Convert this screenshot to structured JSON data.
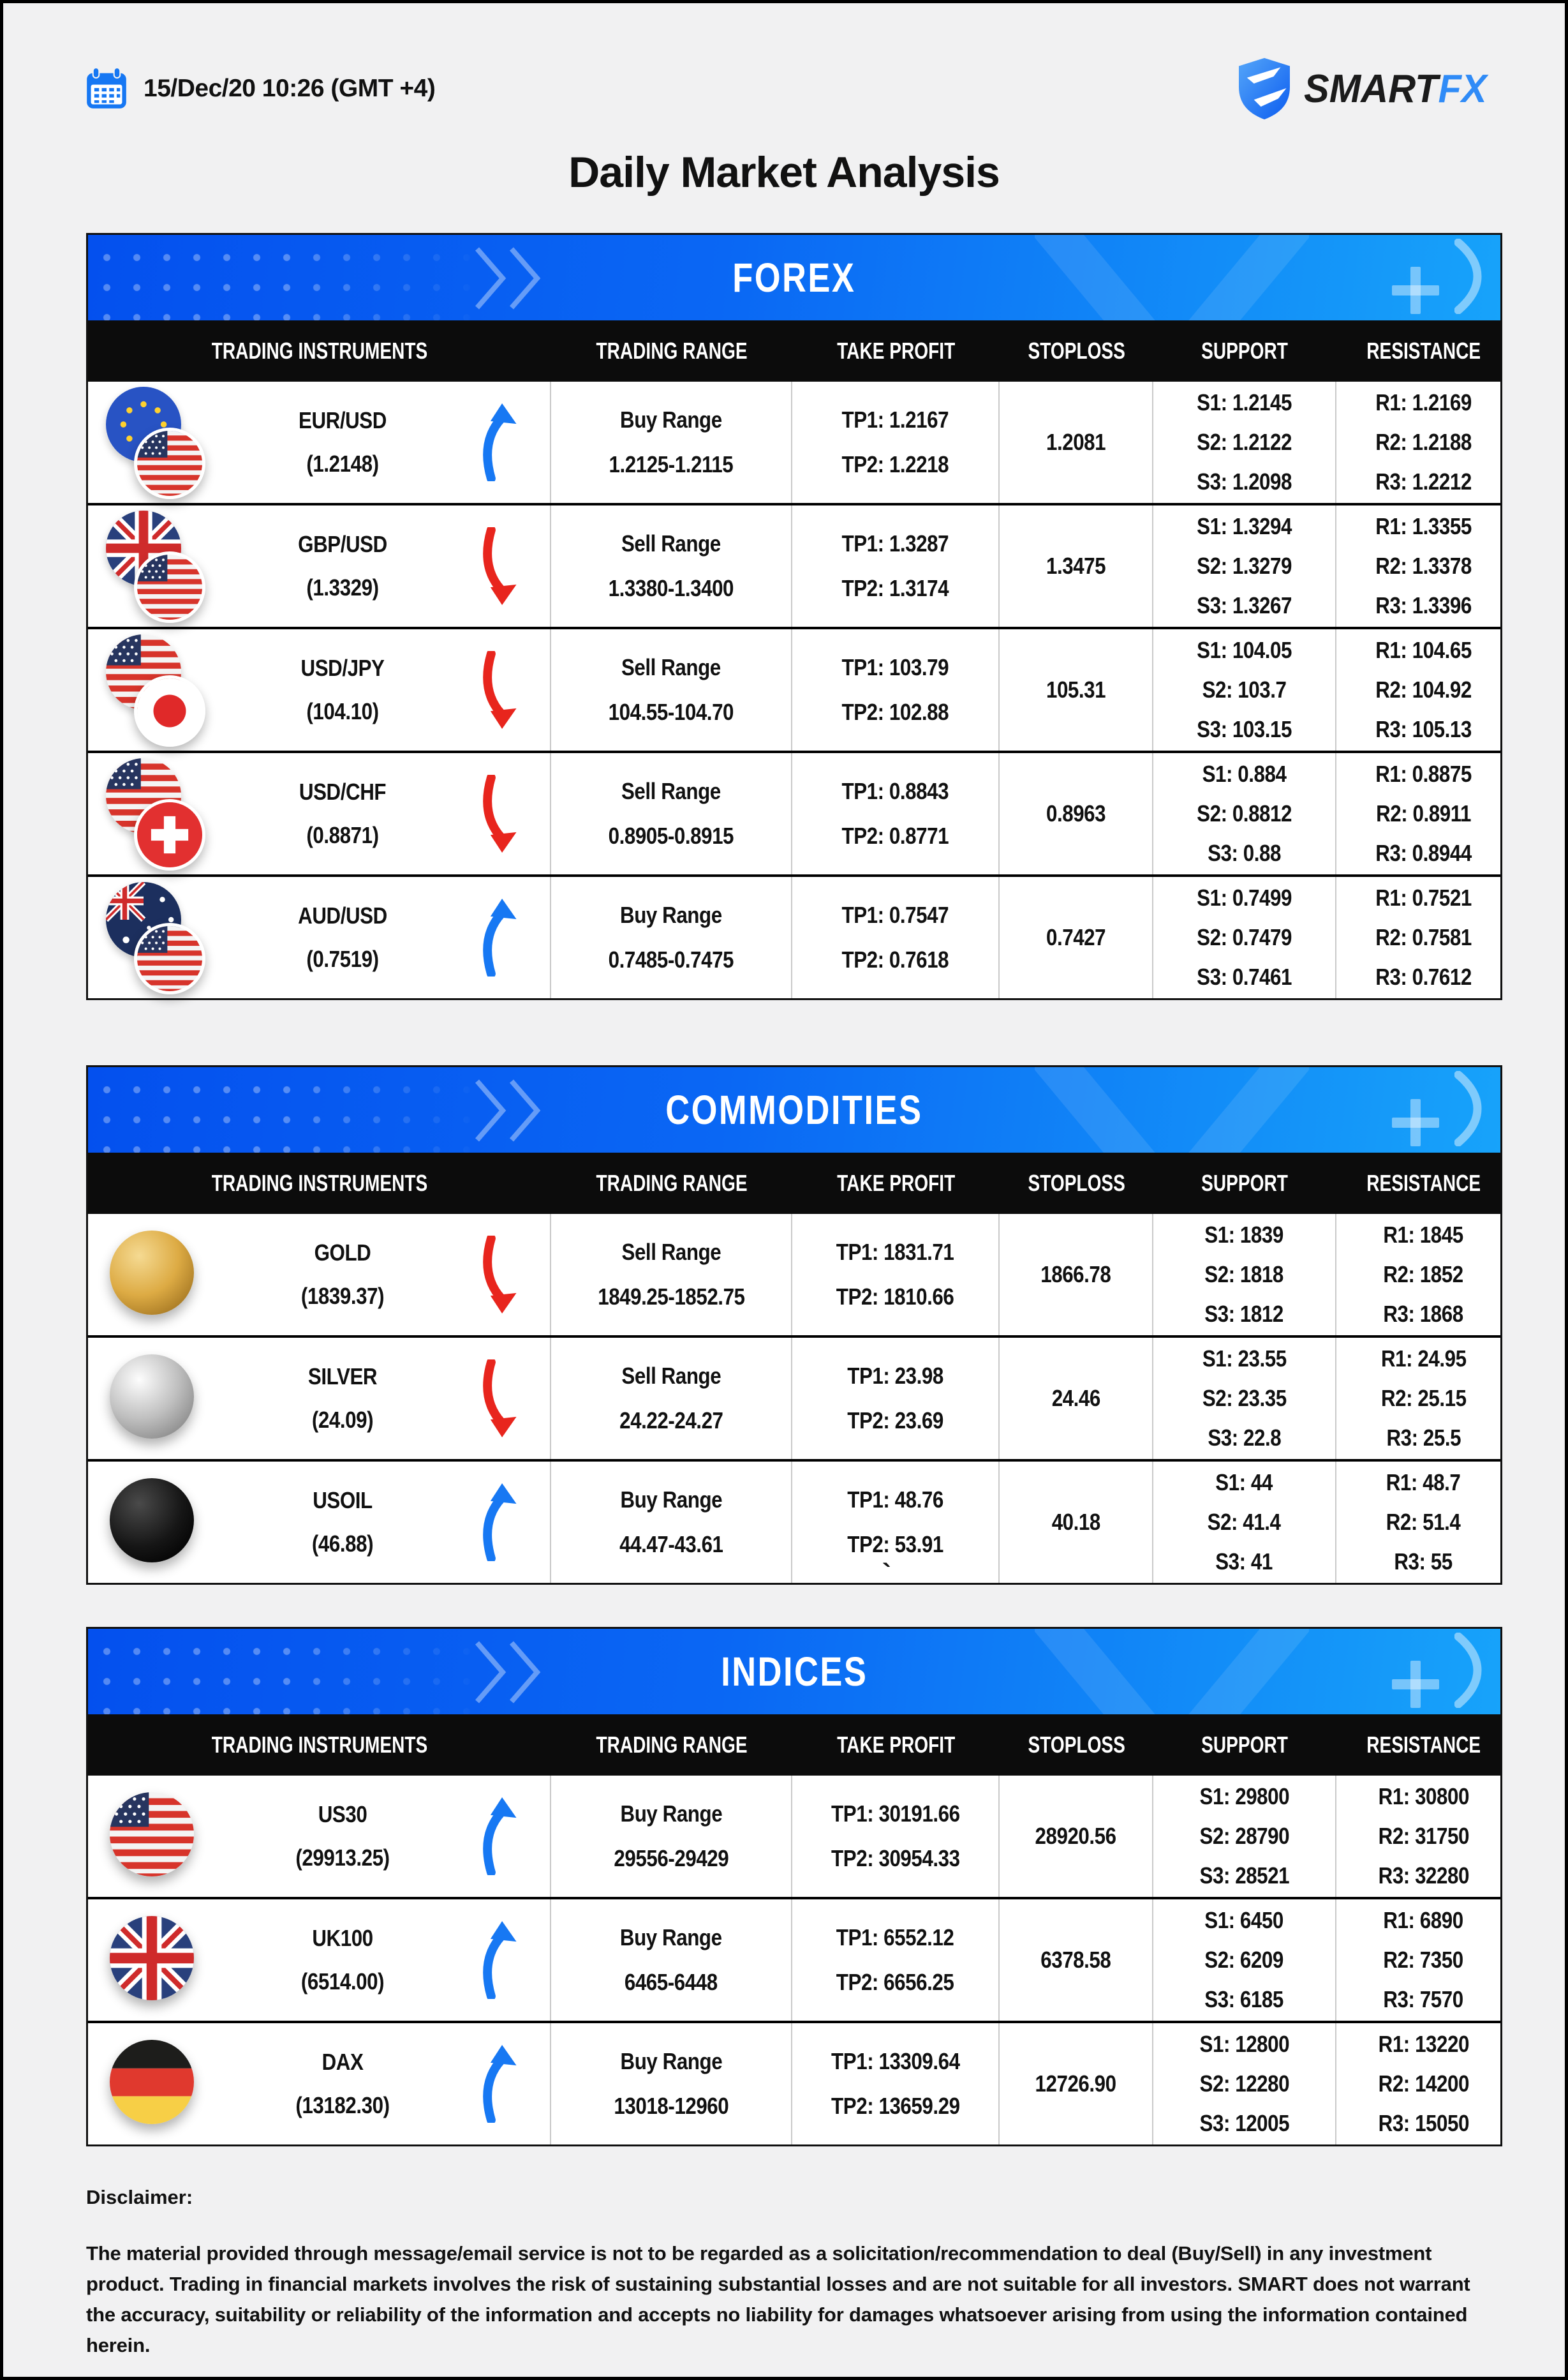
{
  "page": {
    "date": "15/Dec/20 10:26 (GMT +4)",
    "title": "Daily Market Analysis",
    "stray_char": "`"
  },
  "brand": {
    "smart": "SMART",
    "fx": "FX"
  },
  "colors": {
    "banner_gradient_start": "#0450ee",
    "banner_gradient_end": "#17a3fa",
    "header_bar": "#0c0c0c",
    "up_arrow": "#1778f3",
    "down_arrow": "#e8251d",
    "calendar_blue": "#1677f3",
    "logo_blue": "#2f8bf7"
  },
  "columns": [
    "TRADING INSTRUMENTS",
    "TRADING RANGE",
    "TAKE PROFIT",
    "STOPLOSS",
    "SUPPORT",
    "RESISTANCE"
  ],
  "sections": [
    {
      "title": "FOREX",
      "rows": [
        {
          "symbol": "EUR/USD",
          "price": "(1.2148)",
          "direction": "up",
          "icon": "eur-usd",
          "range_label": "Buy Range",
          "range": "1.2125-1.2115",
          "tp1": "TP1: 1.2167",
          "tp2": "TP2: 1.2218",
          "stoploss": "1.2081",
          "s1": "S1: 1.2145",
          "s2": "S2: 1.2122",
          "s3": "S3: 1.2098",
          "r1": "R1: 1.2169",
          "r2": "R2: 1.2188",
          "r3": "R3: 1.2212"
        },
        {
          "symbol": "GBP/USD",
          "price": "(1.3329)",
          "direction": "down",
          "icon": "gbp-usd",
          "range_label": "Sell Range",
          "range": "1.3380-1.3400",
          "tp1": "TP1: 1.3287",
          "tp2": "TP2: 1.3174",
          "stoploss": "1.3475",
          "s1": "S1: 1.3294",
          "s2": "S2: 1.3279",
          "s3": "S3: 1.3267",
          "r1": "R1: 1.3355",
          "r2": "R2: 1.3378",
          "r3": "R3: 1.3396"
        },
        {
          "symbol": "USD/JPY",
          "price": "(104.10)",
          "direction": "down",
          "icon": "usd-jpy",
          "range_label": "Sell Range",
          "range": "104.55-104.70",
          "tp1": "TP1: 103.79",
          "tp2": "TP2: 102.88",
          "stoploss": "105.31",
          "s1": "S1: 104.05",
          "s2": "S2: 103.7",
          "s3": "S3: 103.15",
          "r1": "R1: 104.65",
          "r2": "R2: 104.92",
          "r3": "R3: 105.13"
        },
        {
          "symbol": "USD/CHF",
          "price": "(0.8871)",
          "direction": "down",
          "icon": "usd-chf",
          "range_label": "Sell Range",
          "range": "0.8905-0.8915",
          "tp1": "TP1: 0.8843",
          "tp2": "TP2: 0.8771",
          "stoploss": "0.8963",
          "s1": "S1: 0.884",
          "s2": "S2: 0.8812",
          "s3": "S3: 0.88",
          "r1": "R1: 0.8875",
          "r2": "R2: 0.8911",
          "r3": "R3: 0.8944"
        },
        {
          "symbol": "AUD/USD",
          "price": "(0.7519)",
          "direction": "up",
          "icon": "aud-usd",
          "range_label": "Buy Range",
          "range": "0.7485-0.7475",
          "tp1": "TP1: 0.7547",
          "tp2": "TP2: 0.7618",
          "stoploss": "0.7427",
          "s1": "S1: 0.7499",
          "s2": "S2: 0.7479",
          "s3": "S3: 0.7461",
          "r1": "R1: 0.7521",
          "r2": "R2: 0.7581",
          "r3": "R3: 0.7612"
        }
      ]
    },
    {
      "title": "COMMODITIES",
      "rows": [
        {
          "symbol": "GOLD",
          "price": "(1839.37)",
          "direction": "down",
          "icon": "gold",
          "range_label": "Sell Range",
          "range": "1849.25-1852.75",
          "tp1": "TP1: 1831.71",
          "tp2": "TP2: 1810.66",
          "stoploss": "1866.78",
          "s1": "S1: 1839",
          "s2": "S2: 1818",
          "s3": "S3: 1812",
          "r1": "R1: 1845",
          "r2": "R2: 1852",
          "r3": "R3: 1868"
        },
        {
          "symbol": "SILVER",
          "price": "(24.09)",
          "direction": "down",
          "icon": "silver",
          "range_label": "Sell Range",
          "range": "24.22-24.27",
          "tp1": "TP1: 23.98",
          "tp2": "TP2: 23.69",
          "stoploss": "24.46",
          "s1": "S1: 23.55",
          "s2": "S2: 23.35",
          "s3": "S3: 22.8",
          "r1": "R1: 24.95",
          "r2": "R2: 25.15",
          "r3": "R3: 25.5"
        },
        {
          "symbol": "USOIL",
          "price": "(46.88)",
          "direction": "up",
          "icon": "usoil",
          "range_label": "Buy Range",
          "range": "44.47-43.61",
          "tp1": "TP1: 48.76",
          "tp2": "TP2: 53.91",
          "stoploss": "40.18",
          "s1": "S1: 44",
          "s2": "S2: 41.4",
          "s3": "S3: 41",
          "r1": "R1: 48.7",
          "r2": "R2: 51.4",
          "r3": "R3: 55"
        }
      ]
    },
    {
      "title": "INDICES",
      "rows": [
        {
          "symbol": "US30",
          "price": "(29913.25)",
          "direction": "up",
          "icon": "us30",
          "range_label": "Buy Range",
          "range": "29556-29429",
          "tp1": "TP1: 30191.66",
          "tp2": "TP2: 30954.33",
          "stoploss": "28920.56",
          "s1": "S1: 29800",
          "s2": "S2: 28790",
          "s3": "S3: 28521",
          "r1": "R1: 30800",
          "r2": "R2: 31750",
          "r3": "R3: 32280"
        },
        {
          "symbol": "UK100",
          "price": "(6514.00)",
          "direction": "up",
          "icon": "uk100",
          "range_label": "Buy Range",
          "range": "6465-6448",
          "tp1": "TP1: 6552.12",
          "tp2": "TP2: 6656.25",
          "stoploss": "6378.58",
          "s1": "S1: 6450",
          "s2": "S2: 6209",
          "s3": "S3: 6185",
          "r1": "R1: 6890",
          "r2": "R2: 7350",
          "r3": "R3: 7570"
        },
        {
          "symbol": "DAX",
          "price": "(13182.30)",
          "direction": "up",
          "icon": "dax",
          "range_label": "Buy Range",
          "range": "13018-12960",
          "tp1": "TP1: 13309.64",
          "tp2": "TP2: 13659.29",
          "stoploss": "12726.90",
          "s1": "S1: 12800",
          "s2": "S2: 12280",
          "s3": "S3: 12005",
          "r1": "R1: 13220",
          "r2": "R2: 14200",
          "r3": "R3: 15050"
        }
      ]
    }
  ],
  "disclaimer": {
    "label": "Disclaimer:",
    "body": "The material provided through message/email service is not to be regarded as a solicitation/recommendation to deal (Buy/Sell) in any investment product. Trading in financial markets involves the risk of sustaining substantial losses and are not suitable for all investors. SMART does not warrant the accuracy, suitability or reliability of the information and accepts no liability for damages whatsoever arising from using the information contained herein."
  }
}
